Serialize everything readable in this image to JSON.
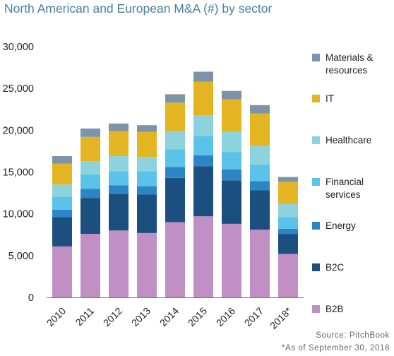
{
  "chart_data": {
    "type": "bar",
    "stacked": true,
    "title": "North American and European M&A (#) by sector",
    "categories": [
      "2010",
      "2011",
      "2012",
      "2013",
      "2014",
      "2015",
      "2016",
      "2017",
      "2018*"
    ],
    "ylim": [
      0,
      30000
    ],
    "yticks": [
      0,
      5000,
      10000,
      15000,
      20000,
      25000,
      30000
    ],
    "ytick_labels": [
      "0",
      "5,000",
      "10,000",
      "15,000",
      "20,000",
      "25,000",
      "30,000"
    ],
    "grid": false,
    "legend_position": "right",
    "series": [
      {
        "name": "B2B",
        "color": "#c08fc4",
        "values": [
          6100,
          7600,
          8000,
          7700,
          9000,
          9700,
          8800,
          8100,
          5200
        ]
      },
      {
        "name": "B2C",
        "color": "#1b4f80",
        "values": [
          3500,
          4300,
          4400,
          4600,
          5300,
          6000,
          5200,
          4700,
          2400
        ]
      },
      {
        "name": "Energy",
        "color": "#2c86c6",
        "values": [
          900,
          1100,
          1000,
          1000,
          1300,
          1300,
          1300,
          1100,
          600
        ]
      },
      {
        "name": "Financial services",
        "color": "#5bc3ea",
        "values": [
          1500,
          1700,
          1700,
          1800,
          2100,
          2300,
          2100,
          2000,
          1400
        ]
      },
      {
        "name": "Healthcare",
        "color": "#8dd3dd",
        "values": [
          1500,
          1600,
          1800,
          1700,
          2200,
          2500,
          2400,
          2200,
          1600
        ]
      },
      {
        "name": "IT",
        "color": "#e4b523",
        "values": [
          2500,
          2900,
          3000,
          3000,
          3400,
          4000,
          3900,
          3900,
          2600
        ]
      },
      {
        "name": "Materials & resources",
        "color": "#7c93a8",
        "values": [
          900,
          1000,
          900,
          800,
          1000,
          1200,
          1000,
          1000,
          600
        ]
      }
    ]
  },
  "legend_labels": {
    "materials": [
      "Materials &",
      "resources"
    ],
    "it": [
      "IT"
    ],
    "healthcare": [
      "Healthcare"
    ],
    "financial": [
      "Financial",
      "services"
    ],
    "energy": [
      "Energy"
    ],
    "b2c": [
      "B2C"
    ],
    "b2b": [
      "B2B"
    ]
  },
  "source_note": "Source: PitchBook",
  "date_note": "*As of September 30, 2018"
}
